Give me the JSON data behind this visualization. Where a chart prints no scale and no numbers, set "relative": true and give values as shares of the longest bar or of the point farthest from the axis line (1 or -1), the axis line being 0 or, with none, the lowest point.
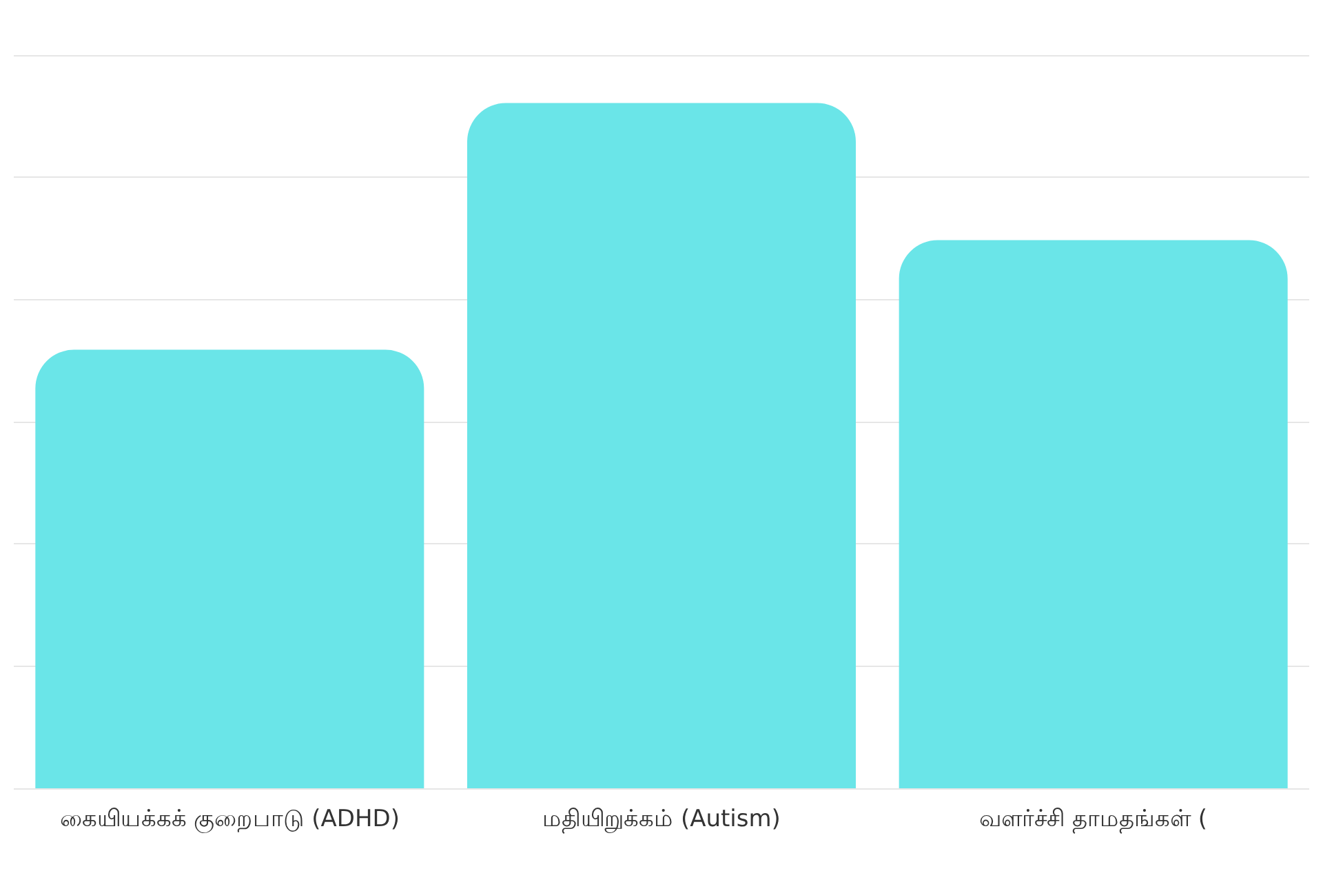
{
  "chart_data": {
    "type": "bar",
    "relative": true,
    "categories": [
      "கையியக்கக் குறைபாடு (ADHD)",
      "மதியிறுக்கம் (Autism)",
      "வளர்ச்சி தாமதங்கள் ("
    ],
    "values": [
      0.64,
      1,
      0.8
    ],
    "color": "#6ae5e8",
    "grid": "y"
  }
}
